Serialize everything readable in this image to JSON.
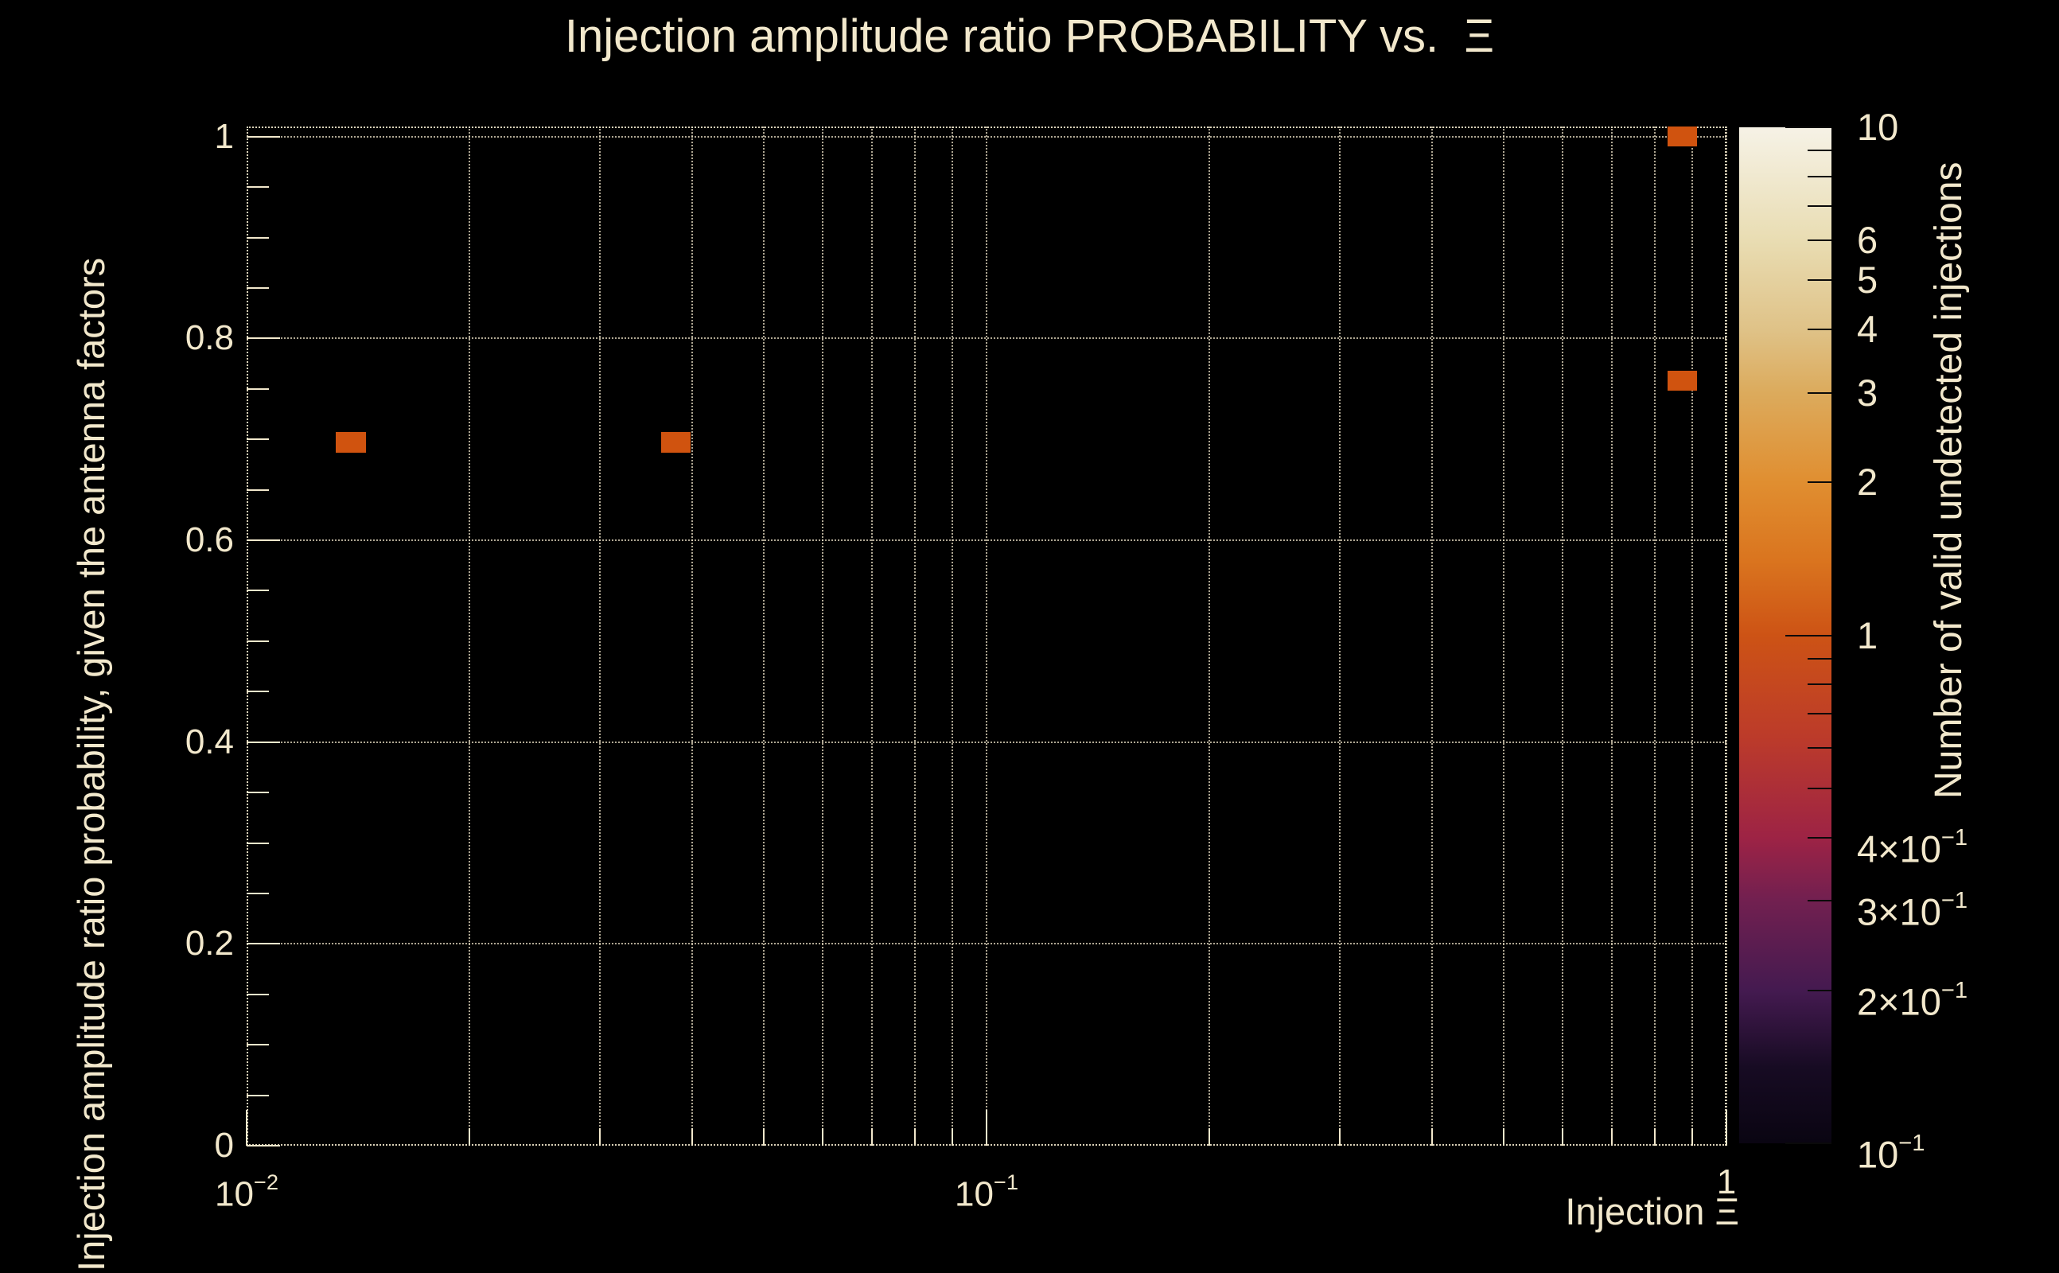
{
  "page": {
    "background_color": "#000000",
    "text_color": "#f2e8cc",
    "grid_color": "#f2e8cc"
  },
  "chart_data": {
    "type": "heatmap",
    "title": "Injection amplitude ratio PROBABILITY vs.  Ξ",
    "xlabel": "Injection Ξ",
    "ylabel": "Injection amplitude ratio probability, given the antenna factors",
    "colorbar_label": "Number of valid undetected injections",
    "x_scale": "log",
    "x_range": [
      0.01,
      1
    ],
    "y_scale": "linear",
    "y_range": [
      0,
      1.01
    ],
    "z_scale": "log",
    "z_range": [
      0.1,
      10
    ],
    "grid": true,
    "x_ticks": [
      {
        "value": 0.01,
        "base": "10",
        "exp": "−2"
      },
      {
        "value": 0.1,
        "base": "10",
        "exp": "−1"
      },
      {
        "value": 1,
        "base": "1",
        "exp": null
      }
    ],
    "y_ticks": [
      {
        "value": 0,
        "label": "0"
      },
      {
        "value": 0.2,
        "label": "0.2"
      },
      {
        "value": 0.4,
        "label": "0.4"
      },
      {
        "value": 0.6,
        "label": "0.6"
      },
      {
        "value": 0.8,
        "label": "0.8"
      },
      {
        "value": 1,
        "label": "1"
      }
    ],
    "colorbar_ticks": [
      {
        "value": 10,
        "base": "10",
        "exp": null
      },
      {
        "value": 6,
        "base": "6",
        "exp": null
      },
      {
        "value": 5,
        "base": "5",
        "exp": null
      },
      {
        "value": 4,
        "base": "4",
        "exp": null
      },
      {
        "value": 3,
        "base": "3",
        "exp": null
      },
      {
        "value": 2,
        "base": "2",
        "exp": null
      },
      {
        "value": 1,
        "base": "1",
        "exp": null
      },
      {
        "value": 0.4,
        "base": "4×10",
        "exp": "−1"
      },
      {
        "value": 0.3,
        "base": "3×10",
        "exp": "−1"
      },
      {
        "value": 0.2,
        "base": "2×10",
        "exp": "−1"
      },
      {
        "value": 0.1,
        "base": "10",
        "exp": "−1"
      }
    ],
    "bins": [
      {
        "x_min": 0.0132,
        "x_max": 0.0145,
        "y_min": 0.687,
        "y_max": 0.707,
        "x_center": 0.0138,
        "y_center": 0.697,
        "count": 1,
        "color": "#d0530f"
      },
      {
        "x_min": 0.0363,
        "x_max": 0.0398,
        "y_min": 0.687,
        "y_max": 0.707,
        "x_center": 0.038,
        "y_center": 0.697,
        "count": 1,
        "color": "#d0530f"
      },
      {
        "x_min": 0.832,
        "x_max": 0.912,
        "y_min": 0.99,
        "y_max": 1.01,
        "x_center": 0.87,
        "y_center": 1.0,
        "count": 1,
        "color": "#d0530f"
      },
      {
        "x_min": 0.832,
        "x_max": 0.912,
        "y_min": 0.748,
        "y_max": 0.768,
        "x_center": 0.87,
        "y_center": 0.758,
        "count": 1,
        "color": "#d0530f"
      }
    ],
    "palette": [
      {
        "pos": 0.0,
        "color": "#0a0512"
      },
      {
        "pos": 0.075,
        "color": "#170b23"
      },
      {
        "pos": 0.15,
        "color": "#441a50"
      },
      {
        "pos": 0.24,
        "color": "#722050"
      },
      {
        "pos": 0.3,
        "color": "#9d2345"
      },
      {
        "pos": 0.4,
        "color": "#bc3b2a"
      },
      {
        "pos": 0.5,
        "color": "#cd5315"
      },
      {
        "pos": 0.575,
        "color": "#da751f"
      },
      {
        "pos": 0.65,
        "color": "#e08e30"
      },
      {
        "pos": 0.74,
        "color": "#dcab5d"
      },
      {
        "pos": 0.8,
        "color": "#dfc287"
      },
      {
        "pos": 0.89,
        "color": "#e9ddb3"
      },
      {
        "pos": 1.0,
        "color": "#f6f2e6"
      }
    ],
    "legend_position": "right"
  }
}
